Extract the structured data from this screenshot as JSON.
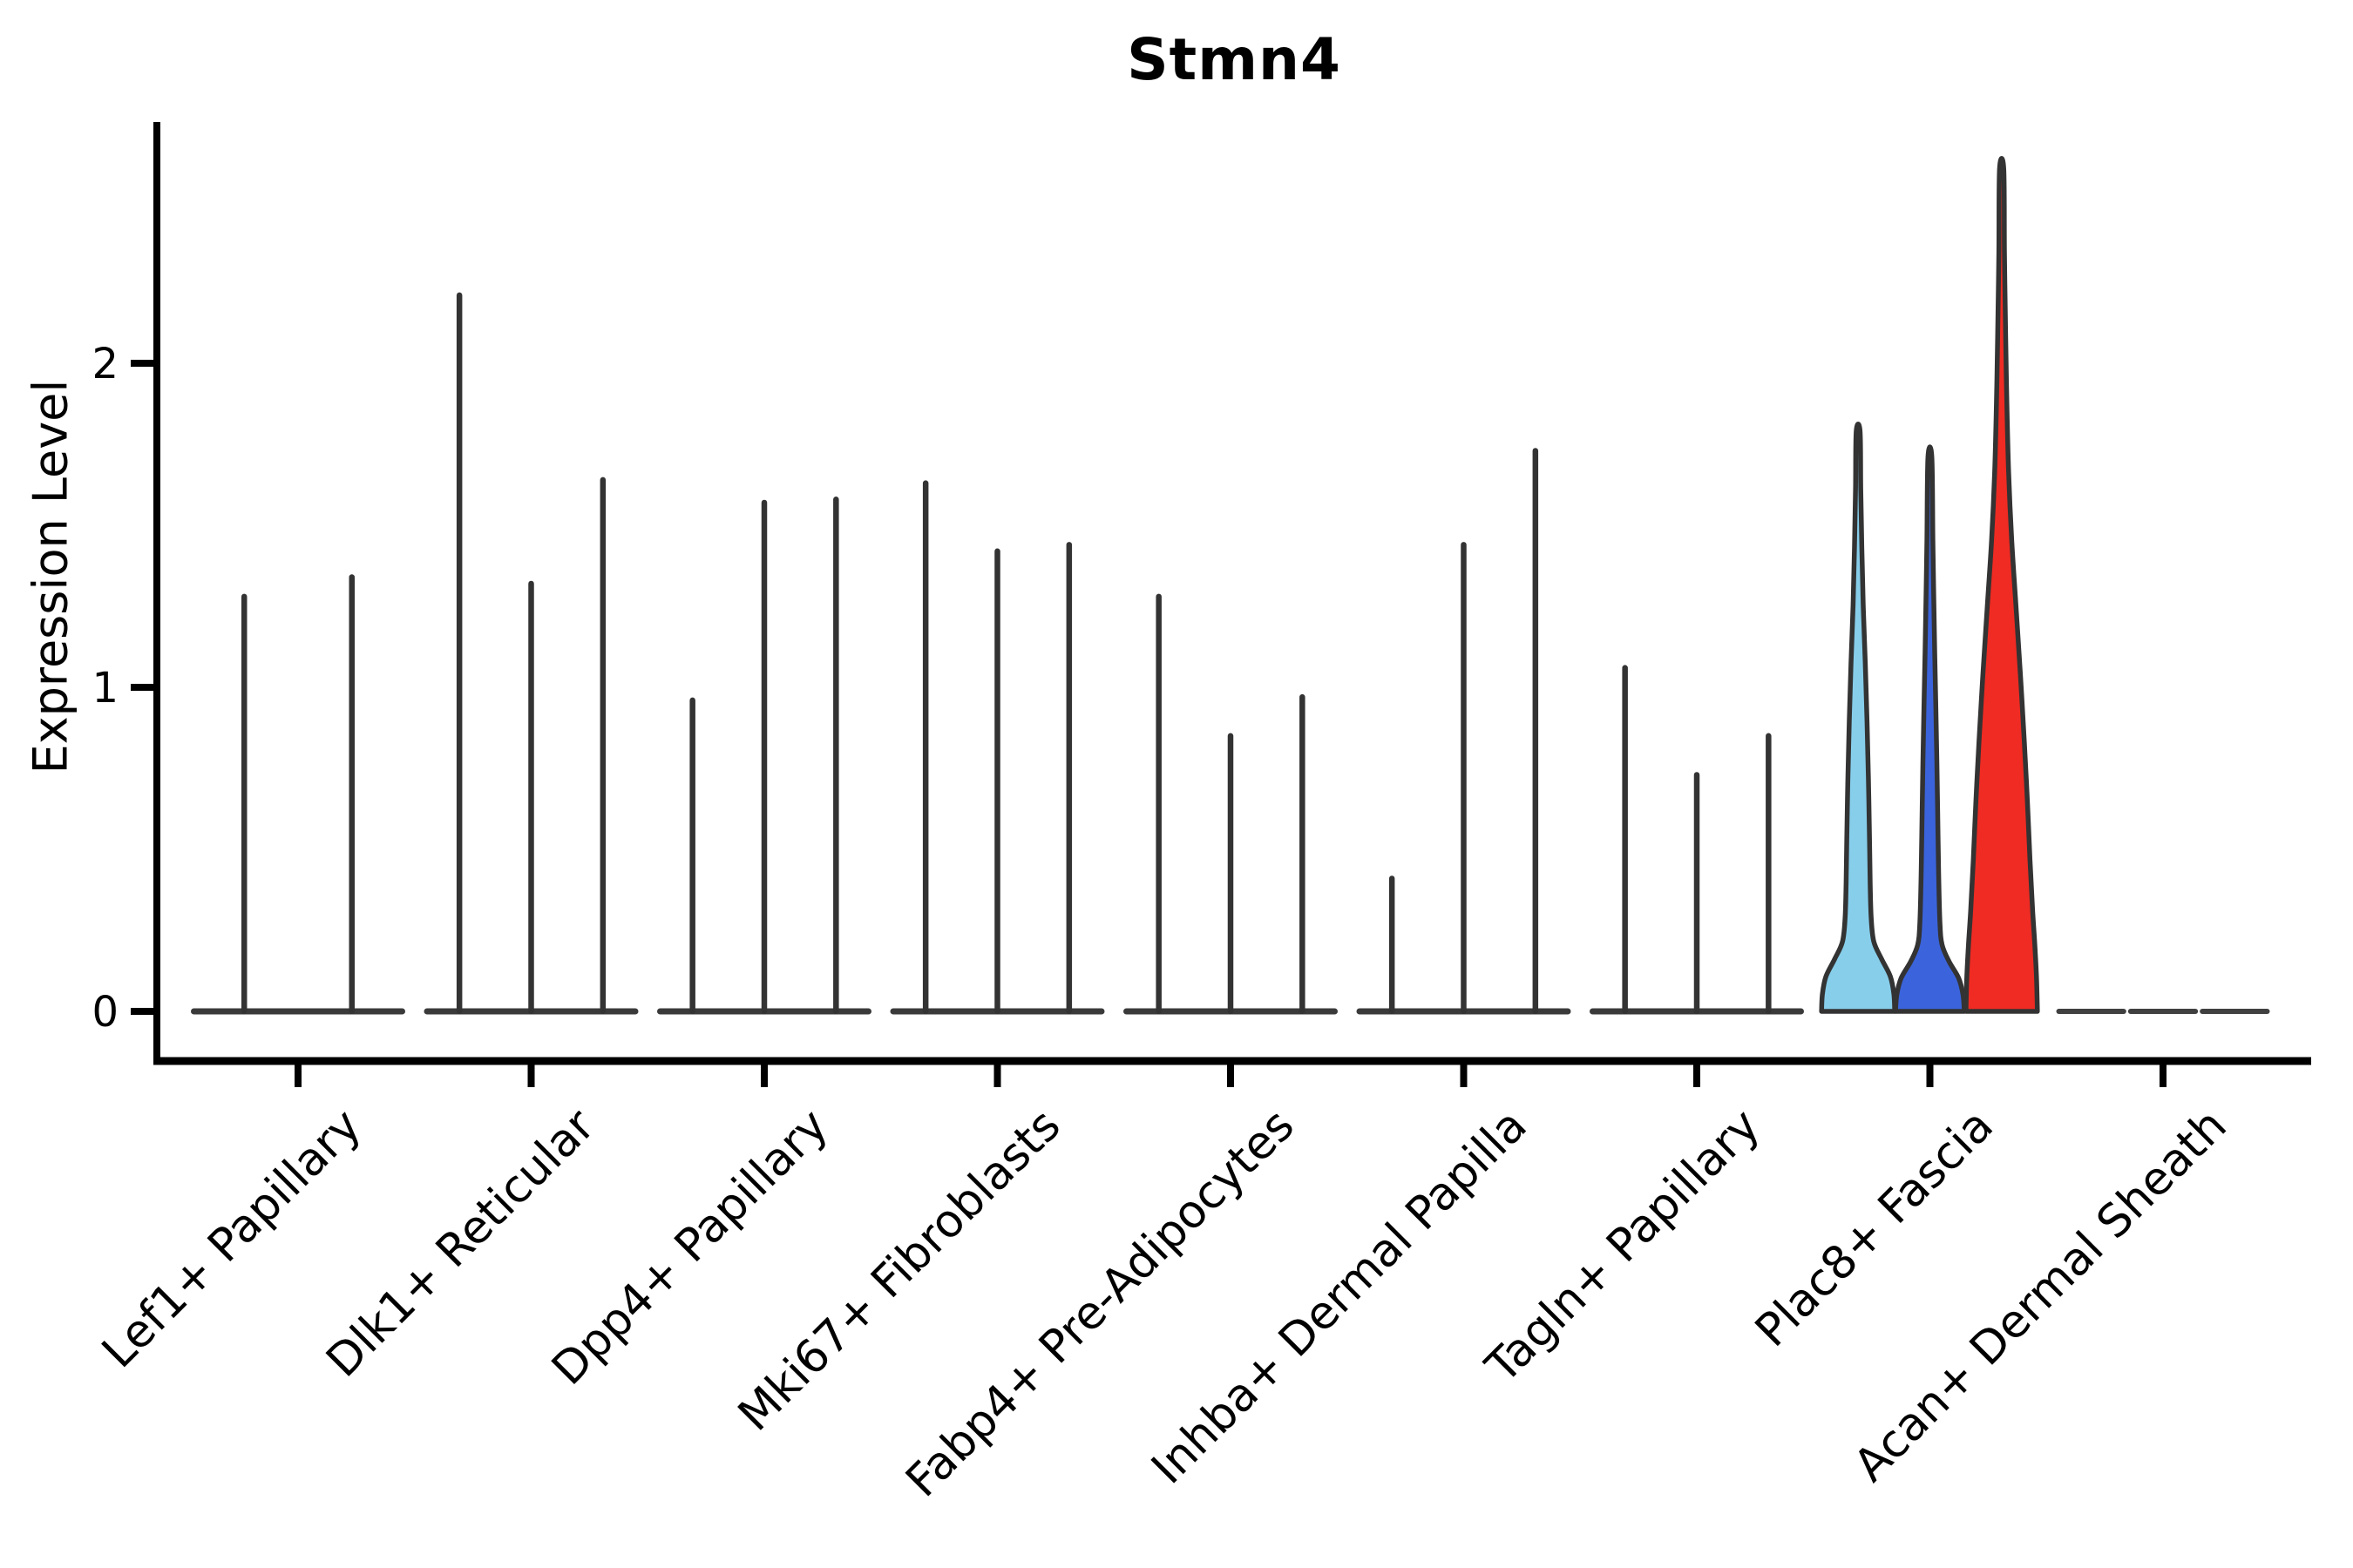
{
  "chart_data": {
    "type": "violin",
    "title": "Stmn4",
    "ylabel": "Expression Level",
    "xlabel": "",
    "yticks": [
      0,
      1,
      2
    ],
    "ylim": [
      0,
      2.75
    ],
    "grid": false,
    "legend": "none",
    "categories": [
      "Lef1+ Papillary",
      "Dlk1+ Reticular",
      "Dpp4+ Papillary",
      "Mki67+ Fibroblasts",
      "Fabp4+ Pre-Adipocytes",
      "Inhba+ Dermal Papilla",
      "Tagln+ Papillary",
      "Plac8+ Fascia",
      "Acan+ Dermal Sheath"
    ],
    "groups": [
      {
        "category": "Lef1+ Papillary",
        "violins": [
          {
            "style": "spike",
            "max": 1.28
          },
          {
            "style": "spike",
            "max": 1.34
          }
        ]
      },
      {
        "category": "Dlk1+ Reticular",
        "violins": [
          {
            "style": "spike",
            "max": 2.21
          },
          {
            "style": "spike",
            "max": 1.32
          },
          {
            "style": "spike",
            "max": 1.64
          }
        ]
      },
      {
        "category": "Dpp4+ Papillary",
        "violins": [
          {
            "style": "spike",
            "max": 0.96
          },
          {
            "style": "spike",
            "max": 1.57
          },
          {
            "style": "spike",
            "max": 1.58
          }
        ]
      },
      {
        "category": "Mki67+ Fibroblasts",
        "violins": [
          {
            "style": "spike",
            "max": 1.63
          },
          {
            "style": "spike",
            "max": 1.42
          },
          {
            "style": "spike",
            "max": 1.44
          }
        ]
      },
      {
        "category": "Fabp4+ Pre-Adipocytes",
        "violins": [
          {
            "style": "spike",
            "max": 1.28
          },
          {
            "style": "spike",
            "max": 0.85
          },
          {
            "style": "spike",
            "max": 0.97
          }
        ]
      },
      {
        "category": "Inhba+ Dermal Papilla",
        "violins": [
          {
            "style": "spike",
            "max": 0.41
          },
          {
            "style": "spike",
            "max": 1.44
          },
          {
            "style": "spike",
            "max": 1.73
          }
        ]
      },
      {
        "category": "Tagln+ Papillary",
        "violins": [
          {
            "style": "spike",
            "max": 1.06
          },
          {
            "style": "spike",
            "max": 0.73
          },
          {
            "style": "spike",
            "max": 0.85
          }
        ]
      },
      {
        "category": "Plac8+ Fascia",
        "violins": [
          {
            "style": "violin",
            "max": 1.79,
            "color": "#87CEEB",
            "shape": [
              [
                0,
                42
              ],
              [
                0.03,
                41
              ],
              [
                0.06,
                37
              ],
              [
                0.09,
                27
              ],
              [
                0.12,
                18
              ],
              [
                0.16,
                15
              ],
              [
                0.22,
                13.8
              ],
              [
                0.3,
                13
              ],
              [
                0.4,
                11.8
              ],
              [
                0.5,
                10.2
              ],
              [
                0.6,
                8.2
              ],
              [
                0.7,
                5.8
              ],
              [
                0.8,
                4.2
              ],
              [
                0.9,
                3.0
              ],
              [
                1,
                2.2
              ]
            ]
          },
          {
            "style": "violin",
            "max": 1.71,
            "color": "#3B64DC",
            "shape": [
              [
                0,
                39.5
              ],
              [
                0.03,
                38
              ],
              [
                0.06,
                33
              ],
              [
                0.09,
                22
              ],
              [
                0.12,
                14
              ],
              [
                0.16,
                11.5
              ],
              [
                0.25,
                10
              ],
              [
                0.35,
                9
              ],
              [
                0.45,
                8
              ],
              [
                0.55,
                6.8
              ],
              [
                0.65,
                5.5
              ],
              [
                0.75,
                4.4
              ],
              [
                0.85,
                3.4
              ],
              [
                1,
                2.2
              ]
            ]
          },
          {
            "style": "violin",
            "max": 2.6,
            "color": "#EF2B23",
            "shape": [
              [
                0,
                41
              ],
              [
                0.04,
                40
              ],
              [
                0.08,
                38
              ],
              [
                0.12,
                35.5
              ],
              [
                0.18,
                32.5
              ],
              [
                0.25,
                29.5
              ],
              [
                0.32,
                26
              ],
              [
                0.4,
                21.5
              ],
              [
                0.48,
                16.5
              ],
              [
                0.56,
                11.5
              ],
              [
                0.64,
                8
              ],
              [
                0.72,
                6
              ],
              [
                0.8,
                4.6
              ],
              [
                0.9,
                3.2
              ],
              [
                1,
                2.4
              ]
            ]
          }
        ]
      },
      {
        "category": "Acan+ Dermal Sheath",
        "violins": [
          {
            "style": "flat",
            "max": 0
          },
          {
            "style": "flat",
            "max": 0
          },
          {
            "style": "flat",
            "max": 0
          }
        ]
      }
    ],
    "colors": {
      "axis": "#000000",
      "spike": "#333333",
      "baseline": "#3a3a3a",
      "flat_line": "#404040",
      "violin_outline": "#333333",
      "text": "#000000",
      "background": "#ffffff"
    }
  }
}
